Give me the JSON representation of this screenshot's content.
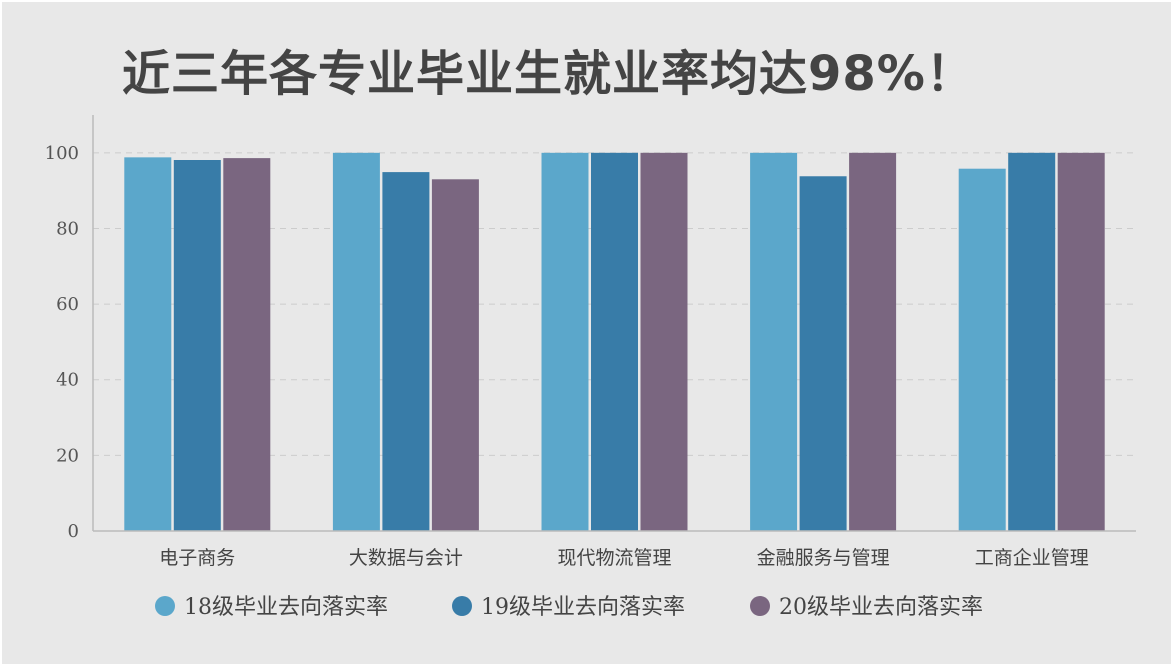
{
  "chart_data": {
    "type": "bar",
    "title": "近三年各专业毕业生就业率均达98%！",
    "categories": [
      "电子商务",
      "大数据与会计",
      "现代物流管理",
      "金融服务与管理",
      "工商企业管理"
    ],
    "series": [
      {
        "name": "18级毕业去向落实率",
        "color": "#5ba7cb",
        "values": [
          98.8,
          100,
          100,
          100,
          95.8
        ]
      },
      {
        "name": "19级毕业去向落实率",
        "color": "#387ca8",
        "values": [
          98.1,
          94.9,
          100,
          93.8,
          100
        ]
      },
      {
        "name": "20级毕业去向落实率",
        "color": "#7a6680",
        "values": [
          98.6,
          93.0,
          100,
          100,
          100
        ]
      }
    ],
    "yticks": [
      0,
      20,
      40,
      60,
      80,
      100
    ],
    "ylim": [
      0,
      110
    ],
    "xlabel": "",
    "ylabel": "",
    "grid": "horizontal-dashed",
    "legend_position": "bottom"
  }
}
